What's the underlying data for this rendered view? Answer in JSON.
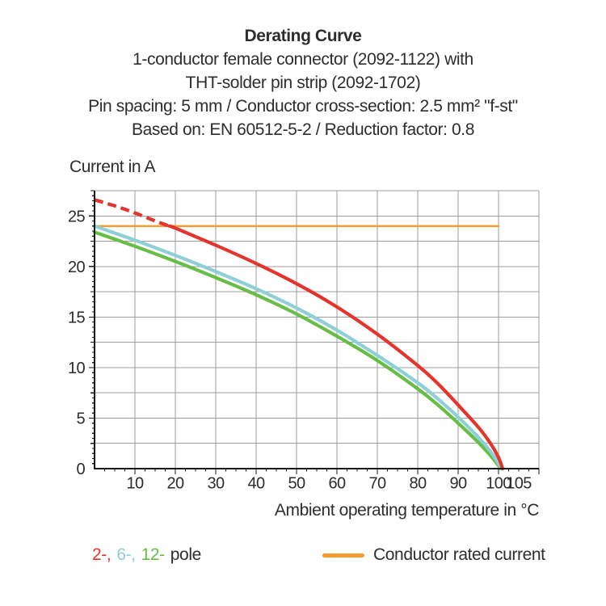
{
  "title": {
    "line1": "Derating Curve",
    "line2": "1-conductor female connector (2092-1122) with",
    "line3": "THT-solder pin strip (2092-1702)",
    "line4": "Pin spacing: 5 mm / Conductor cross-section: 2.5 mm² \"f-st\"",
    "line5": "Based on: EN 60512-5-2 / Reduction factor: 0.8"
  },
  "y_axis_title": "Current in A",
  "x_axis_title": "Ambient operating temperature in °C",
  "colors": {
    "grid": "#9c9c9c",
    "axis": "#1a1a1a",
    "text": "#2d2d2d",
    "red": "#e5342b",
    "light_blue": "#8fcfd7",
    "green": "#67bd45",
    "orange": "#f49b2d"
  },
  "legend": {
    "pole_items": [
      {
        "label": "2-,",
        "color": "#e5342b"
      },
      {
        "label": "6-,",
        "color": "#8fcfd7"
      },
      {
        "label": "12-",
        "color": "#67bd45"
      }
    ],
    "pole_suffix": "pole",
    "rated_current_label": "Conductor rated current",
    "rated_current_color": "#f49b2d"
  },
  "chart_data": {
    "type": "line",
    "title": "Derating Curve",
    "xlabel": "Ambient operating temperature in °C",
    "ylabel": "Current in A",
    "xlim": [
      0,
      110
    ],
    "ylim": [
      0,
      27.5
    ],
    "x_major_ticks": [
      10,
      20,
      30,
      40,
      50,
      60,
      70,
      80,
      90,
      100,
      105
    ],
    "y_major_ticks": [
      0,
      5,
      10,
      15,
      20,
      25
    ],
    "grid_x_step": 10,
    "grid_y_step": 2.5,
    "grid": true,
    "legend_position": "bottom",
    "series": [
      {
        "id": "rated-current",
        "name": "Conductor rated current",
        "color": "#f49b2d",
        "style": "solid",
        "width": 2.4,
        "points": [
          [
            0,
            24
          ],
          [
            100,
            24
          ]
        ]
      },
      {
        "id": "12-pole",
        "name": "12-pole",
        "color": "#67bd45",
        "style": "solid",
        "width": 4.2,
        "points": [
          [
            0,
            23.4
          ],
          [
            10,
            22.0
          ],
          [
            20,
            20.5
          ],
          [
            30,
            18.9
          ],
          [
            40,
            17.2
          ],
          [
            50,
            15.3
          ],
          [
            60,
            13.1
          ],
          [
            70,
            10.7
          ],
          [
            80,
            7.9
          ],
          [
            85,
            6.3
          ],
          [
            90,
            4.5
          ],
          [
            95,
            2.6
          ],
          [
            98,
            1.3
          ],
          [
            100,
            0.3
          ],
          [
            100.5,
            0
          ]
        ]
      },
      {
        "id": "6-pole",
        "name": "6-pole",
        "color": "#8fcfd7",
        "style": "solid",
        "width": 4.2,
        "points": [
          [
            0,
            24.0
          ],
          [
            10,
            22.6
          ],
          [
            20,
            21.1
          ],
          [
            30,
            19.5
          ],
          [
            40,
            17.8
          ],
          [
            50,
            15.9
          ],
          [
            60,
            13.7
          ],
          [
            70,
            11.2
          ],
          [
            80,
            8.5
          ],
          [
            85,
            6.9
          ],
          [
            90,
            5.1
          ],
          [
            95,
            3.1
          ],
          [
            98,
            1.7
          ],
          [
            100,
            0.5
          ],
          [
            100.7,
            0
          ]
        ]
      },
      {
        "id": "2-pole",
        "name": "2-pole",
        "color": "#e5342b",
        "style": "solid",
        "width": 4.2,
        "points": [
          [
            18.5,
            24.0
          ],
          [
            20,
            23.8
          ],
          [
            30,
            22.1
          ],
          [
            40,
            20.3
          ],
          [
            50,
            18.3
          ],
          [
            60,
            16.0
          ],
          [
            70,
            13.3
          ],
          [
            80,
            10.2
          ],
          [
            85,
            8.4
          ],
          [
            90,
            6.3
          ],
          [
            95,
            4.1
          ],
          [
            98,
            2.5
          ],
          [
            100,
            1.1
          ],
          [
            101,
            0
          ]
        ]
      },
      {
        "id": "2-pole-extrapolation",
        "name": "2-pole (extrapolated, dashed)",
        "color": "#e5342b",
        "style": "dashed",
        "width": 4.2,
        "points": [
          [
            0,
            26.6
          ],
          [
            5,
            26.0
          ],
          [
            10,
            25.3
          ],
          [
            15,
            24.5
          ],
          [
            18.5,
            24.0
          ]
        ]
      }
    ]
  }
}
